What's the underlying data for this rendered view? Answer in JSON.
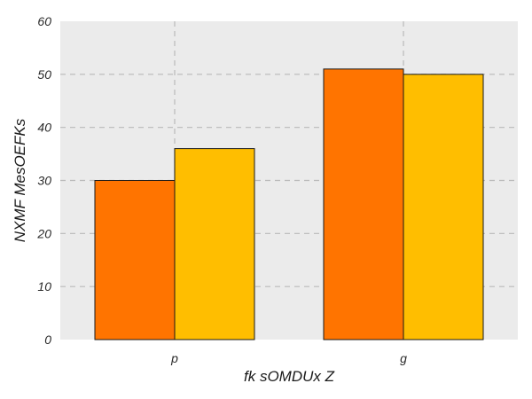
{
  "chart_data": {
    "type": "bar",
    "categories": [
      "p",
      "g"
    ],
    "series": [
      {
        "values": [
          30,
          51
        ]
      },
      {
        "values": [
          36,
          50
        ]
      }
    ],
    "xlabel": "fk sOMDUx  Z",
    "ylabel": "NXMF MesOEFKs",
    "ylim": [
      0,
      60
    ],
    "yticks": [
      0,
      10,
      20,
      30,
      40,
      50,
      60
    ],
    "grid": true,
    "colors": {
      "series": [
        "#ff7400",
        "#ffbe00"
      ],
      "plot_background": "#ebebeb",
      "grid": "#b9b9b9"
    }
  }
}
